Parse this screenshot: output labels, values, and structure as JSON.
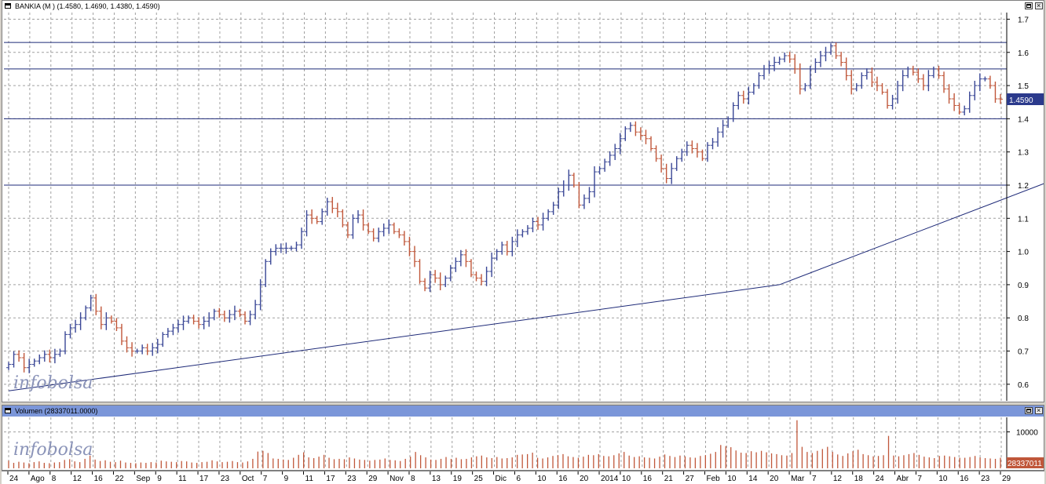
{
  "price_panel": {
    "title": "BANKIA (M ) (1.4580, 1.4690, 1.4380, 1.4590)",
    "last_value": "1.4590",
    "watermark": "infobolsa"
  },
  "volume_panel": {
    "title": "Volumen (28337011.0000)",
    "last_value": "28337011",
    "watermark": "infobolsa"
  },
  "colors": {
    "up": "#3a4796",
    "down": "#c0573a",
    "line": "#1e2a78",
    "volume": "#c0573a",
    "grid": "#a0a0a0"
  },
  "chart_data": [
    {
      "type": "ohlc",
      "title": "BANKIA (M ) (1.4580, 1.4690, 1.4380, 1.4590)",
      "ylim": [
        0.55,
        1.72
      ],
      "yticks": [
        "0.6",
        "0.7",
        "0.8",
        "0.9",
        "1.0",
        "1.1",
        "1.2",
        "1.3",
        "1.4",
        "1.5",
        "1.6",
        "1.7"
      ],
      "x_labels": [
        "24",
        "Ago",
        "8",
        "12",
        "16",
        "22",
        "Sep",
        "9",
        "11",
        "17",
        "23",
        "Oct",
        "7",
        "9",
        "11",
        "17",
        "23",
        "29",
        "Nov",
        "8",
        "13",
        "19",
        "25",
        "Dic",
        "6",
        "10",
        "16",
        "20",
        "2014",
        "10",
        "16",
        "21",
        "27",
        "Feb",
        "10",
        "14",
        "20",
        "Mar",
        "7",
        "12",
        "18",
        "24",
        "Abr",
        "7",
        "10",
        "16",
        "23",
        "29"
      ],
      "horizontal_levels": [
        1.63,
        1.55,
        1.4,
        1.2
      ],
      "trendlines": [
        [
          [
            0,
            0.58
          ],
          [
            150,
            0.9
          ]
        ],
        [
          [
            150,
            0.9
          ],
          [
            248,
            1.48
          ]
        ]
      ],
      "closes": [
        0.66,
        0.69,
        0.68,
        0.65,
        0.66,
        0.67,
        0.68,
        0.69,
        0.68,
        0.69,
        0.7,
        0.75,
        0.77,
        0.78,
        0.8,
        0.83,
        0.86,
        0.82,
        0.78,
        0.8,
        0.79,
        0.77,
        0.73,
        0.71,
        0.7,
        0.7,
        0.71,
        0.7,
        0.71,
        0.72,
        0.75,
        0.76,
        0.77,
        0.78,
        0.79,
        0.8,
        0.79,
        0.78,
        0.79,
        0.8,
        0.82,
        0.81,
        0.8,
        0.81,
        0.82,
        0.81,
        0.79,
        0.81,
        0.84,
        0.9,
        0.97,
        1.0,
        1.01,
        1.01,
        1.01,
        1.01,
        1.02,
        1.06,
        1.11,
        1.1,
        1.09,
        1.12,
        1.15,
        1.13,
        1.12,
        1.08,
        1.05,
        1.1,
        1.11,
        1.08,
        1.06,
        1.04,
        1.06,
        1.07,
        1.08,
        1.06,
        1.05,
        1.03,
        1.0,
        0.97,
        0.91,
        0.89,
        0.93,
        0.92,
        0.9,
        0.92,
        0.95,
        0.97,
        0.99,
        0.97,
        0.93,
        0.92,
        0.91,
        0.94,
        0.98,
        1.0,
        1.02,
        1.0,
        1.03,
        1.05,
        1.06,
        1.07,
        1.09,
        1.08,
        1.1,
        1.12,
        1.14,
        1.18,
        1.2,
        1.23,
        1.2,
        1.14,
        1.16,
        1.18,
        1.24,
        1.25,
        1.27,
        1.29,
        1.31,
        1.34,
        1.37,
        1.38,
        1.36,
        1.35,
        1.34,
        1.31,
        1.28,
        1.25,
        1.22,
        1.25,
        1.28,
        1.3,
        1.32,
        1.31,
        1.3,
        1.28,
        1.32,
        1.33,
        1.36,
        1.38,
        1.4,
        1.44,
        1.47,
        1.46,
        1.48,
        1.5,
        1.53,
        1.55,
        1.56,
        1.57,
        1.58,
        1.59,
        1.58,
        1.55,
        1.49,
        1.5,
        1.55,
        1.57,
        1.59,
        1.6,
        1.62,
        1.59,
        1.57,
        1.53,
        1.49,
        1.5,
        1.53,
        1.54,
        1.51,
        1.5,
        1.48,
        1.44,
        1.46,
        1.5,
        1.53,
        1.55,
        1.54,
        1.52,
        1.5,
        1.53,
        1.55,
        1.53,
        1.49,
        1.46,
        1.44,
        1.42,
        1.43,
        1.47,
        1.5,
        1.52,
        1.52,
        1.5,
        1.46,
        1.459
      ]
    },
    {
      "type": "bar",
      "title": "Volumen (28337011.0000)",
      "ylim": [
        0,
        14000
      ],
      "yticks": [
        "10000"
      ],
      "last_value": "28337011",
      "values": [
        2100,
        1500,
        1800,
        1600,
        1400,
        1700,
        1900,
        1500,
        1400,
        1600,
        1700,
        2300,
        2500,
        1900,
        1700,
        2600,
        3500,
        2400,
        2000,
        2200,
        1800,
        1700,
        2100,
        1600,
        1500,
        1400,
        1600,
        1500,
        1700,
        1600,
        2100,
        1900,
        1800,
        1700,
        2000,
        1900,
        1600,
        1500,
        1700,
        1800,
        2200,
        1900,
        1700,
        1800,
        2000,
        1700,
        1600,
        1900,
        2600,
        4600,
        4800,
        4200,
        2700,
        2600,
        2400,
        2300,
        2900,
        3700,
        4400,
        3000,
        2800,
        3200,
        3700,
        2900,
        2500,
        2600,
        2500,
        3000,
        2700,
        2400,
        2300,
        2100,
        2300,
        2400,
        2700,
        2300,
        2200,
        2000,
        2600,
        3200,
        4500,
        3600,
        3000,
        2400,
        2300,
        2600,
        3100,
        2600,
        2900,
        2500,
        2600,
        3000,
        3300,
        3500,
        3000,
        2800,
        3100,
        2700,
        2800,
        3000,
        3700,
        3800,
        3900,
        4300,
        2900,
        2700,
        3000,
        3400,
        3600,
        3900,
        3300,
        3100,
        2900,
        3200,
        3700,
        3600,
        3900,
        3400,
        3300,
        3600,
        4100,
        4500,
        3500,
        3100,
        3300,
        3000,
        2900,
        2700,
        3200,
        3800,
        3400,
        3100,
        3500,
        3300,
        3000,
        2900,
        3400,
        3600,
        4000,
        4500,
        6400,
        6100,
        5800,
        4900,
        4300,
        4200,
        4700,
        4400,
        4800,
        4400,
        4100,
        3900,
        3600,
        3500,
        4200,
        13200,
        5900,
        4500,
        4200,
        4800,
        5300,
        5900,
        4500,
        3800,
        3400,
        4100,
        4700,
        5100,
        3900,
        3600,
        3300,
        3400,
        3600,
        8900,
        3500,
        3300,
        3600,
        3900,
        4200,
        3700,
        3200,
        3000,
        2800,
        3400,
        3500,
        3300,
        3100,
        2900,
        2900,
        3100,
        3400,
        3000,
        2800,
        2700,
        2600,
        2900
      ]
    }
  ]
}
